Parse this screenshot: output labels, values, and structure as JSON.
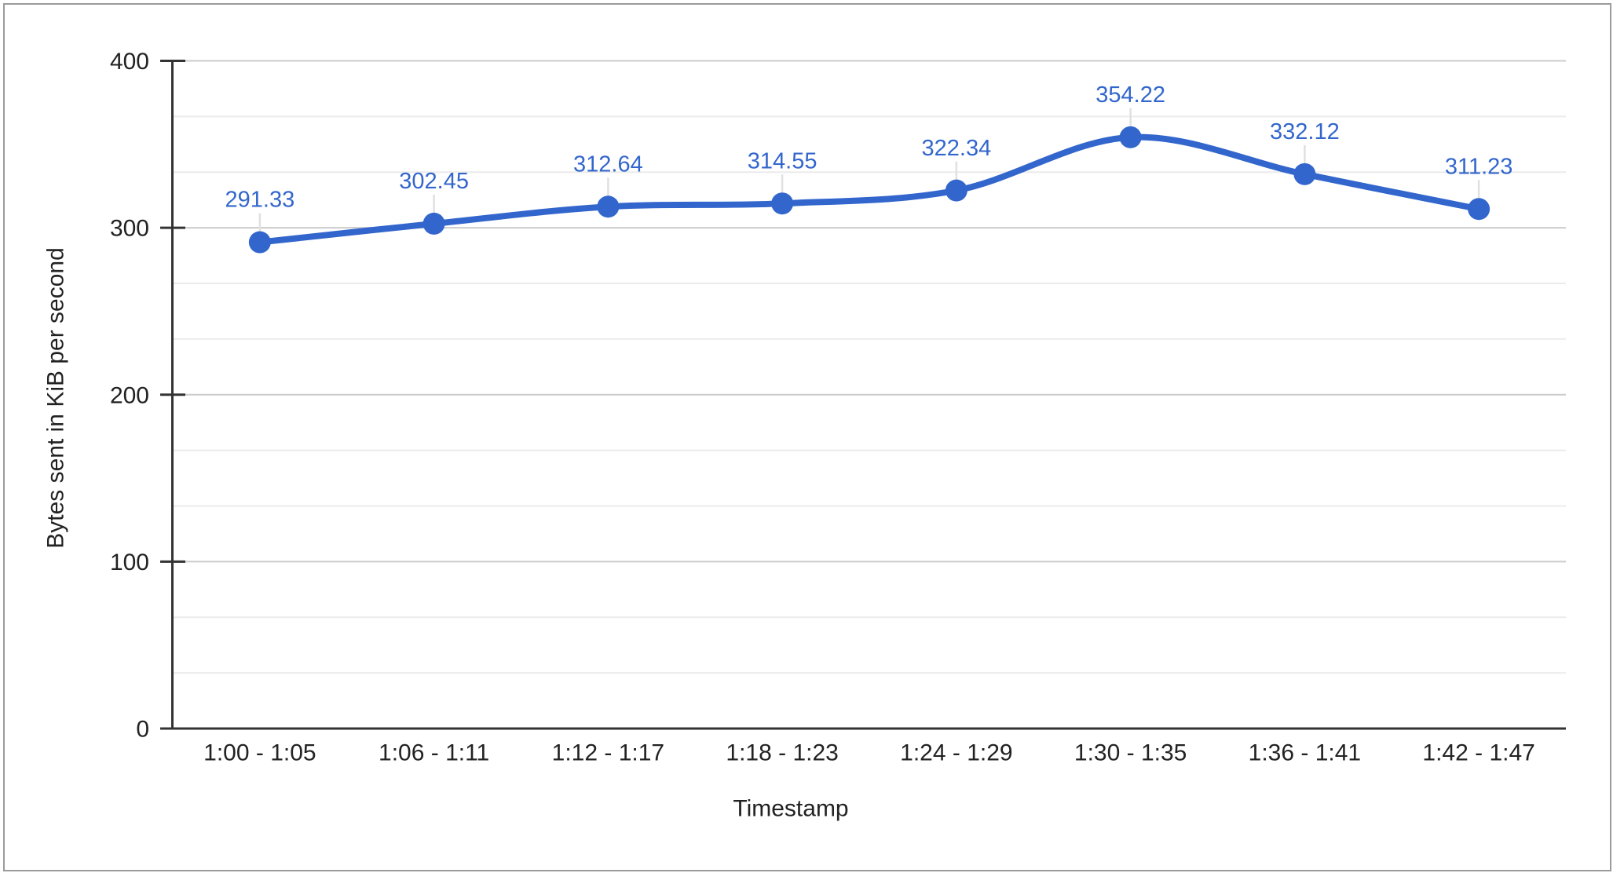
{
  "chart_data": {
    "type": "line",
    "title": "",
    "xlabel": "Timestamp",
    "ylabel": "Bytes sent in KiB per second",
    "categories": [
      "1:00 - 1:05",
      "1:06 - 1:11",
      "1:12 - 1:17",
      "1:18 - 1:23",
      "1:24 - 1:29",
      "1:30 - 1:35",
      "1:36 - 1:41",
      "1:42 - 1:47"
    ],
    "series": [
      {
        "values": [
          291.33,
          302.45,
          312.64,
          314.55,
          322.34,
          354.22,
          332.12,
          311.23
        ]
      }
    ],
    "point_labels": [
      "291.33",
      "302.45",
      "312.64",
      "314.55",
      "322.34",
      "354.22",
      "332.12",
      "311.23"
    ],
    "ylim": [
      0,
      400
    ],
    "yticks": [
      0,
      100,
      200,
      300,
      400
    ],
    "ytick_labels": [
      "0",
      "100",
      "200",
      "300",
      "400"
    ],
    "minor_gridlines_between_majors": 2,
    "grid": true,
    "legend": "none",
    "smooth_curve": true
  },
  "colors": {
    "series": "#3366cc",
    "data_label": "#3366cc",
    "grid_major": "#cccccc",
    "grid_minor": "#ebebeb",
    "axis": "#333333",
    "text": "#222222",
    "annotation_stem": "#e0e0e0",
    "frame_border": "#9b9b9b",
    "background": "#ffffff"
  }
}
